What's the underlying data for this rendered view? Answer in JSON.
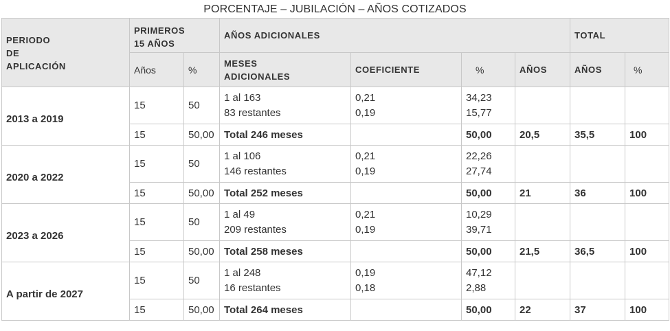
{
  "title": "PORCENTAJE – JUBILACIÓN – AÑOS COTIZADOS",
  "headers": {
    "periodo_line1": "PERIODO",
    "periodo_line2": "DE",
    "periodo_line3": "APLICACIÓN",
    "primeros_line1": "PRIMEROS",
    "primeros_line2": "15 AÑOS",
    "adicionales": "AÑOS ADICIONALES",
    "total": "TOTAL",
    "anos": "Años",
    "pct": "%",
    "meses_line1": "MESES",
    "meses_line2": "ADICIONALES",
    "coeficiente": "COEFICIENTE",
    "pct2": "%",
    "anos_caps": "AÑOS",
    "total_anos": "AÑOS",
    "total_pct": "%"
  },
  "rows": [
    {
      "periodo": "2013 a 2019",
      "a": {
        "anos": "15",
        "pct": "50",
        "meses1": "1 al 163",
        "meses2": "83 restantes",
        "coef1": "0,21",
        "coef2": "0,19",
        "p1": "34,23",
        "p2": "15,77"
      },
      "b": {
        "anos": "15",
        "pct": "50,00",
        "total_meses": "Total 246 meses",
        "anos_ad": "20,5",
        "total_anos": "35,5",
        "total_pct": "100"
      }
    },
    {
      "periodo": "2020 a 2022",
      "a": {
        "anos": "15",
        "pct": "50",
        "meses1": "1 al 106",
        "meses2": "146 restantes",
        "coef1": "0,21",
        "coef2": "0,19",
        "p1": "22,26",
        "p2": "27,74"
      },
      "b": {
        "anos": "15",
        "pct": "50,00",
        "total_meses": "Total 252 meses",
        "anos_ad": "21",
        "total_anos": "36",
        "total_pct": "100"
      }
    },
    {
      "periodo": "2023 a 2026",
      "a": {
        "anos": "15",
        "pct": "50",
        "meses1": "1 al 49",
        "meses2": "209 restantes",
        "coef1": "0,21",
        "coef2": "0,19",
        "p1": "10,29",
        "p2": "39,71"
      },
      "b": {
        "anos": "15",
        "pct": "50,00",
        "total_meses": "Total 258 meses",
        "anos_ad": "21,5",
        "total_anos": "36,5",
        "total_pct": "100"
      }
    },
    {
      "periodo": "A partir de 2027",
      "a": {
        "anos": "15",
        "pct": "50",
        "meses1": "1 al 248",
        "meses2": "16 restantes",
        "coef1": "0,19",
        "coef2": "0,18",
        "p1": "47,12",
        "p2": "2,88"
      },
      "b": {
        "anos": "15",
        "pct": "50,00",
        "total_meses": "Total 264 meses",
        "anos_ad": "22",
        "total_anos": "37",
        "total_pct": "100"
      }
    }
  ]
}
